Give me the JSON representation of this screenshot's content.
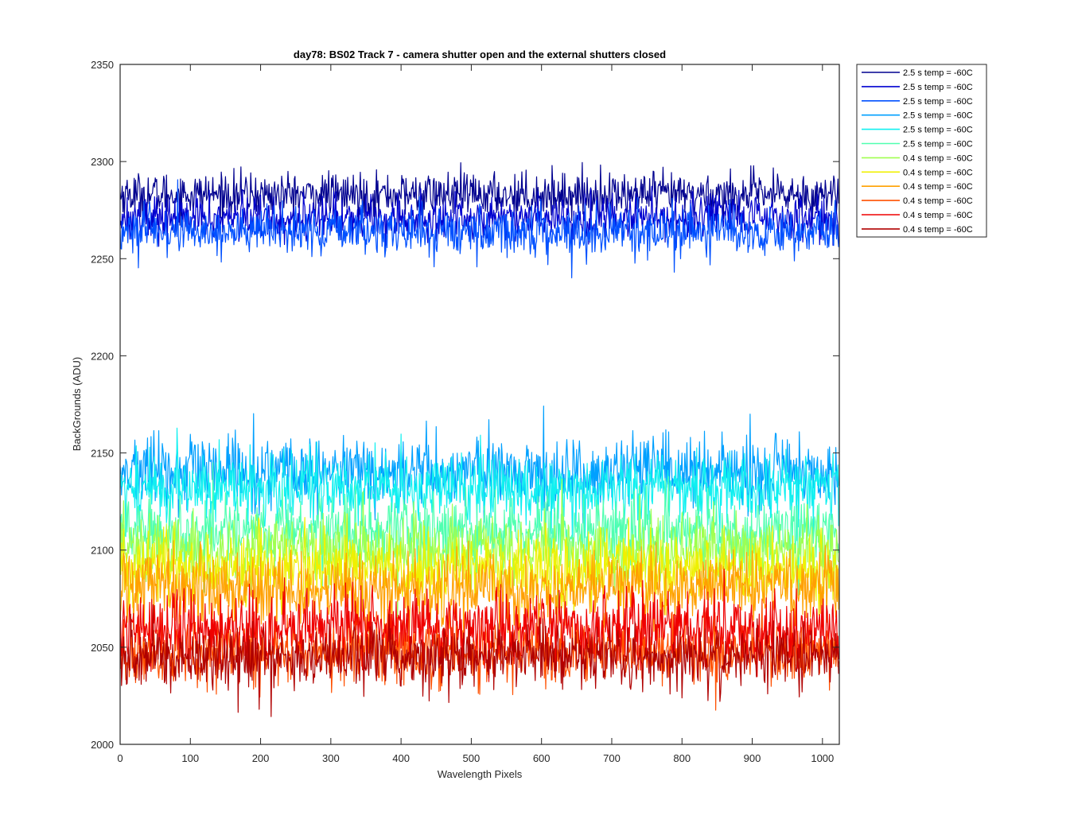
{
  "chart_data": {
    "type": "line",
    "title": "day78: BS02  Track 7 - camera shutter open and the external shutters closed",
    "xlabel": "Wavelength Pixels",
    "ylabel": "BackGrounds (ADU)",
    "xlim": [
      0,
      1024
    ],
    "ylim": [
      2000,
      2350
    ],
    "xticks": [
      0,
      100,
      200,
      300,
      400,
      500,
      600,
      700,
      800,
      900,
      1000
    ],
    "yticks": [
      2000,
      2050,
      2100,
      2150,
      2200,
      2250,
      2300,
      2350
    ],
    "grid": false,
    "legend_position": "outside-top-right",
    "num_points": 1024,
    "series": [
      {
        "name": "2.5 s temp = -60C",
        "color": "#00008f",
        "mean": 2283,
        "spread": 5.5
      },
      {
        "name": "2.5 s temp = -60C",
        "color": "#0000d0",
        "mean": 2271,
        "spread": 5.5
      },
      {
        "name": "2.5 s temp = -60C",
        "color": "#0050ff",
        "mean": 2264,
        "spread": 6
      },
      {
        "name": "2.5 s temp = -60C",
        "color": "#00a0ff",
        "mean": 2140,
        "spread": 9
      },
      {
        "name": "2.5 s temp = -60C",
        "color": "#10f0f0",
        "mean": 2132,
        "spread": 9
      },
      {
        "name": "2.5 s temp = -60C",
        "color": "#50ffb0",
        "mean": 2110,
        "spread": 9
      },
      {
        "name": "0.4 s temp = -60C",
        "color": "#a0ff50",
        "mean": 2100,
        "spread": 9
      },
      {
        "name": "0.4 s temp = -60C",
        "color": "#f0f000",
        "mean": 2090,
        "spread": 9
      },
      {
        "name": "0.4 s temp = -60C",
        "color": "#ffa000",
        "mean": 2080,
        "spread": 9
      },
      {
        "name": "0.4 s temp = -60C",
        "color": "#ff5000",
        "mean": 2048,
        "spread": 9
      },
      {
        "name": "0.4 s temp = -60C",
        "color": "#ef0000",
        "mean": 2060,
        "spread": 9
      },
      {
        "name": "0.4 s temp = -60C",
        "color": "#b00000",
        "mean": 2045,
        "spread": 8
      }
    ]
  }
}
